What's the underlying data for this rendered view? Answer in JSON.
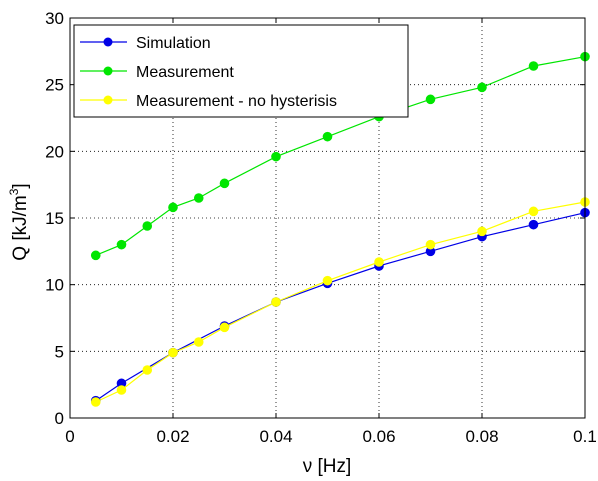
{
  "chart_data": {
    "type": "line",
    "xlabel": "ν [Hz]",
    "ylabel_main": "Q [kJ/m",
    "ylabel_sup": "3",
    "ylabel_end": "]",
    "xlim": [
      0,
      0.1
    ],
    "ylim": [
      0,
      30
    ],
    "xticks": [
      0,
      0.02,
      0.04,
      0.06,
      0.08,
      0.1
    ],
    "xtick_labels": [
      "0",
      "0.02",
      "0.04",
      "0.06",
      "0.08",
      "0.1"
    ],
    "yticks": [
      0,
      5,
      10,
      15,
      20,
      25,
      30
    ],
    "ytick_labels": [
      "0",
      "5",
      "10",
      "15",
      "20",
      "25",
      "30"
    ],
    "grid": true,
    "legend_position": "top-left",
    "series": [
      {
        "name": "Simulation",
        "color": "#0000e6",
        "x": [
          0.005,
          0.01,
          0.02,
          0.03,
          0.04,
          0.05,
          0.06,
          0.07,
          0.08,
          0.09,
          0.1
        ],
        "y": [
          1.3,
          2.6,
          4.9,
          6.9,
          8.7,
          10.1,
          11.4,
          12.5,
          13.6,
          14.5,
          15.4
        ]
      },
      {
        "name": "Measurement",
        "color": "#00e600",
        "x": [
          0.005,
          0.01,
          0.015,
          0.02,
          0.025,
          0.03,
          0.04,
          0.05,
          0.06,
          0.07,
          0.08,
          0.09,
          0.1
        ],
        "y": [
          12.2,
          13.0,
          14.4,
          15.8,
          16.5,
          17.6,
          19.6,
          21.1,
          22.6,
          23.9,
          24.8,
          26.4,
          27.1
        ]
      },
      {
        "name": "Measurement - no hysterisis",
        "color": "#ffff00",
        "x": [
          0.005,
          0.01,
          0.015,
          0.02,
          0.025,
          0.03,
          0.04,
          0.05,
          0.06,
          0.07,
          0.08,
          0.09,
          0.1
        ],
        "y": [
          1.2,
          2.1,
          3.6,
          4.9,
          5.7,
          6.8,
          8.7,
          10.3,
          11.7,
          13.0,
          14.0,
          15.5,
          16.2
        ]
      }
    ]
  }
}
